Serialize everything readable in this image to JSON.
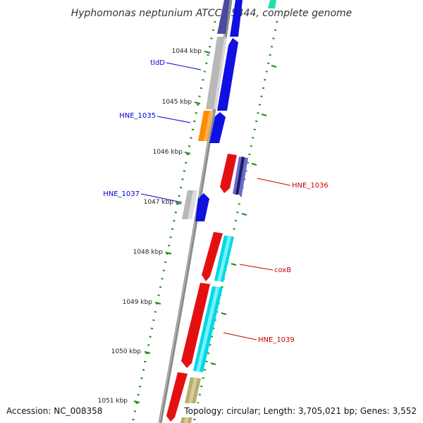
{
  "title": "Hyphomonas neptunium ATCC 15444, complete genome",
  "footer": {
    "accession": "Accession: NC_008358",
    "topology": "Topology: circular; Length: 3,705,021 bp; Genes: 3,552"
  },
  "colors": {
    "backbone": "#8a8a8a",
    "tick_dots": "#1e8c1e",
    "forward_label": "#0000cc",
    "reverse_label": "#cc0000"
  },
  "ticks": [
    {
      "label": "1044 kbp"
    },
    {
      "label": "1045 kbp"
    },
    {
      "label": "1046 kbp"
    },
    {
      "label": "1047 kbp"
    },
    {
      "label": "1048 kbp"
    },
    {
      "label": "1049 kbp"
    },
    {
      "label": "1050 kbp"
    },
    {
      "label": "1051 kbp"
    }
  ],
  "gene_labels": [
    {
      "text": "tldD",
      "strand": "forward"
    },
    {
      "text": "HNE_1035",
      "strand": "forward"
    },
    {
      "text": "HNE_1037",
      "strand": "forward"
    },
    {
      "text": "HNE_1036",
      "strand": "reverse"
    },
    {
      "text": "coxB",
      "strand": "reverse"
    },
    {
      "text": "HNE_1039",
      "strand": "reverse"
    }
  ]
}
